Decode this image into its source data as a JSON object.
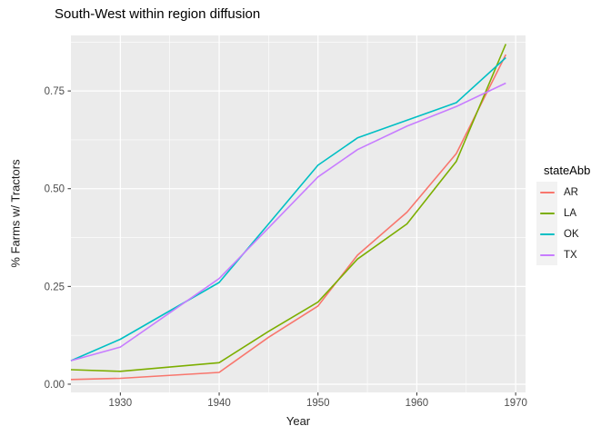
{
  "chart_data": {
    "type": "line",
    "title": "South-West within region diffusion",
    "xlabel": "Year",
    "ylabel": "% Farms w/ Tractors",
    "x": [
      1925,
      1930,
      1940,
      1945,
      1950,
      1954,
      1959,
      1964,
      1969
    ],
    "series": [
      {
        "name": "AR",
        "color": "#F8766D",
        "values": [
          0.012,
          0.015,
          0.03,
          0.12,
          0.2,
          0.33,
          0.44,
          0.59,
          0.843
        ]
      },
      {
        "name": "LA",
        "color": "#7CAE00",
        "values": [
          0.037,
          0.033,
          0.055,
          0.135,
          0.21,
          0.32,
          0.41,
          0.57,
          0.87
        ]
      },
      {
        "name": "OK",
        "color": "#00BFC4",
        "values": [
          0.06,
          0.115,
          0.26,
          0.41,
          0.56,
          0.63,
          0.675,
          0.72,
          0.835
        ]
      },
      {
        "name": "TX",
        "color": "#C77CFF",
        "values": [
          0.06,
          0.095,
          0.27,
          0.4,
          0.53,
          0.6,
          0.66,
          0.71,
          0.77
        ]
      }
    ],
    "xlim": [
      1925,
      1971
    ],
    "ylim": [
      -0.021,
      0.892
    ],
    "x_ticks": [
      1930,
      1940,
      1950,
      1960,
      1970
    ],
    "x_tick_labels": [
      "1930",
      "1940",
      "1950",
      "1960",
      "1970"
    ],
    "x_minor_ticks": [
      1935,
      1945,
      1955,
      1965
    ],
    "y_ticks": [
      0,
      0.25,
      0.5,
      0.75
    ],
    "y_tick_labels": [
      "0.00",
      "0.25",
      "0.50",
      "0.75"
    ],
    "y_minor_ticks": [
      0.125,
      0.375,
      0.625,
      0.875
    ],
    "grid": true,
    "legend": {
      "title": "stateAbb",
      "position": "right",
      "entries": [
        "AR",
        "LA",
        "OK",
        "TX"
      ]
    },
    "theme": {
      "panel_bg": "#EBEBEB",
      "grid_color": "#FFFFFF",
      "legend_key_bg": "#F2F2F2",
      "tick_mark_color": "#333333",
      "tick_label_color": "#4D4D4D"
    }
  }
}
